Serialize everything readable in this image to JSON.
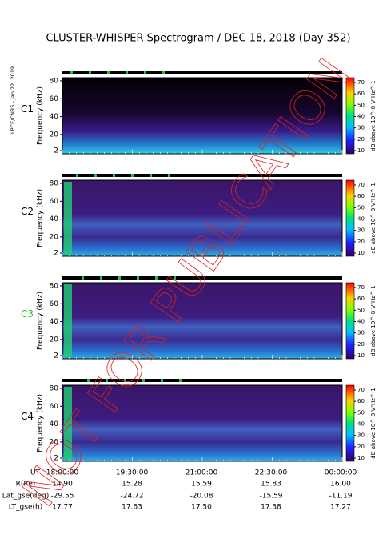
{
  "title": "CLUSTER-WHISPER Spectrogram / DEC 18, 2018 (Day 352)",
  "side_label": "LPCE/CNRS - Jan 22, 2019",
  "watermark": "NOT FOR PUBLICATION",
  "ylabel": "Frequency (kHz)",
  "yticks": [
    2,
    20,
    40,
    60,
    80
  ],
  "colorbar_label": "dB above 10^-8 V²Hz^-1",
  "colorbar_ticks": [
    10,
    20,
    30,
    40,
    50,
    60,
    70
  ],
  "panels": [
    {
      "name": "C1"
    },
    {
      "name": "C2"
    },
    {
      "name": "C3"
    },
    {
      "name": "C4"
    }
  ],
  "ephemeris": {
    "rows": [
      {
        "label": "UT",
        "values": [
          "18:00:00",
          "19:30:00",
          "21:00:00",
          "22:30:00",
          "00:00:00"
        ]
      },
      {
        "label": "R(Re)",
        "values": [
          "14.90",
          "15.28",
          "15.59",
          "15.83",
          "16.00"
        ]
      },
      {
        "label": "Lat_gse(deg)",
        "values": [
          "-29.55",
          "-24.72",
          "-20.08",
          "-15.59",
          "-11.19"
        ]
      },
      {
        "label": "LT_gse(h)",
        "values": [
          "17.77",
          "17.63",
          "17.50",
          "17.38",
          "17.27"
        ]
      }
    ]
  }
}
